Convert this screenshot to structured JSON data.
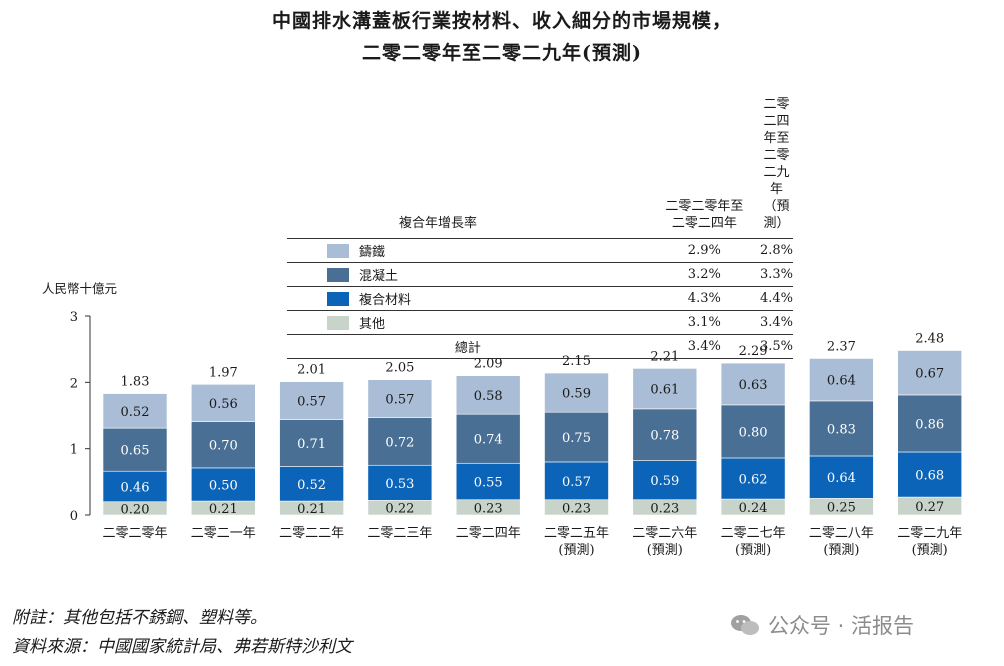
{
  "title": {
    "line1": "中國排水溝蓋板行業按材料、收入細分的市場規模，",
    "line2": "二零二零年至二零二九年(預測)"
  },
  "cagr_table": {
    "header_label": "複合年增長率",
    "col1_line1": "二零二零年至",
    "col1_line2": "二零二四年",
    "col2_line1": "二零二四年至",
    "col2_line2": "二零二九年（預測）",
    "rows": [
      {
        "name": "鑄鐵",
        "color": "#a9bdd6",
        "v1": "2.9%",
        "v2": "2.8%"
      },
      {
        "name": "混凝土",
        "color": "#4a6f94",
        "v1": "3.2%",
        "v2": "3.3%"
      },
      {
        "name": "複合材料",
        "color": "#0b64b8",
        "v1": "4.3%",
        "v2": "4.4%"
      },
      {
        "name": "其他",
        "color": "#c8d3c9",
        "v1": "3.1%",
        "v2": "3.4%"
      }
    ],
    "total": {
      "name": "總計",
      "v1": "3.4%",
      "v2": "3.5%"
    }
  },
  "chart_data": {
    "type": "bar",
    "stacked": true,
    "unit_label": "人民幣十億元",
    "ylim": [
      0,
      3
    ],
    "yticks": [
      0,
      1,
      2,
      3
    ],
    "categories": [
      [
        "二零二零年"
      ],
      [
        "二零二一年"
      ],
      [
        "二零二二年"
      ],
      [
        "二零二三年"
      ],
      [
        "二零二四年"
      ],
      [
        "二零二五年",
        "(預測)"
      ],
      [
        "二零二六年",
        "(預測)"
      ],
      [
        "二零二七年",
        "(預測)"
      ],
      [
        "二零二八年",
        "(預測)"
      ],
      [
        "二零二九年",
        "(預測)"
      ]
    ],
    "series": [
      {
        "name": "其他",
        "color": "#c8d3c9",
        "label_color": "#1a1a1a",
        "values": [
          0.2,
          0.21,
          0.21,
          0.22,
          0.23,
          0.23,
          0.23,
          0.24,
          0.25,
          0.27
        ]
      },
      {
        "name": "複合材料",
        "color": "#0b64b8",
        "label_color": "#ffffff",
        "values": [
          0.46,
          0.5,
          0.52,
          0.53,
          0.55,
          0.57,
          0.59,
          0.62,
          0.64,
          0.68
        ]
      },
      {
        "name": "混凝土",
        "color": "#4a6f94",
        "label_color": "#ffffff",
        "values": [
          0.65,
          0.7,
          0.71,
          0.72,
          0.74,
          0.75,
          0.78,
          0.8,
          0.83,
          0.86
        ]
      },
      {
        "name": "鑄鐵",
        "color": "#a9bdd6",
        "label_color": "#1a1a1a",
        "values": [
          0.52,
          0.56,
          0.57,
          0.57,
          0.58,
          0.59,
          0.61,
          0.63,
          0.64,
          0.67
        ]
      }
    ],
    "totals": [
      1.83,
      1.97,
      2.01,
      2.05,
      2.09,
      2.15,
      2.21,
      2.29,
      2.37,
      2.48
    ]
  },
  "notes": {
    "note1": "附註：其他包括不銹鋼、塑料等。",
    "note2": "資料來源：中國國家統計局、弗若斯特沙利文"
  },
  "watermark": "公众号 · 活报告"
}
